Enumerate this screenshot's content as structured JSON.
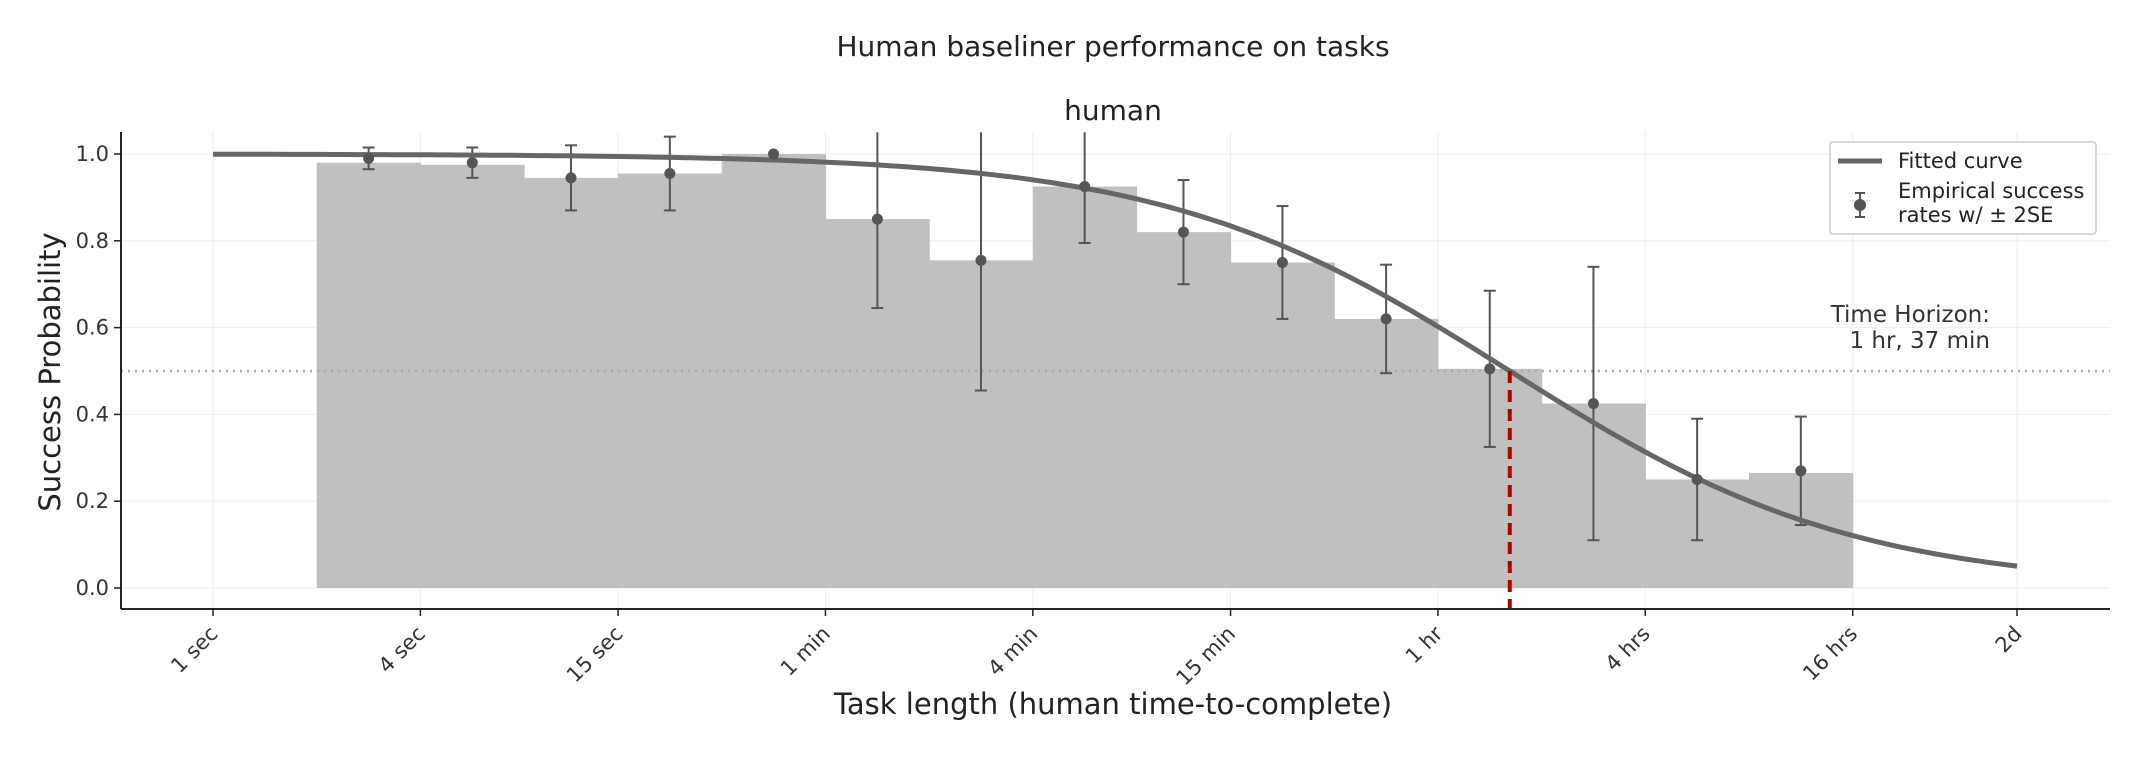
{
  "chart_data": {
    "type": "bar",
    "title": "Human baseliner performance on tasks",
    "subtitle": "human",
    "xlabel": "Task length (human time-to-complete)",
    "ylabel": "Success Probability",
    "x_scale": "log",
    "ylim": [
      -0.05,
      1.05
    ],
    "x_ticks": [
      {
        "label": "1 sec",
        "seconds": 1
      },
      {
        "label": "4 sec",
        "seconds": 4
      },
      {
        "label": "15 sec",
        "seconds": 15
      },
      {
        "label": "1 min",
        "seconds": 60
      },
      {
        "label": "4 min",
        "seconds": 240
      },
      {
        "label": "15 min",
        "seconds": 900
      },
      {
        "label": "1 hr",
        "seconds": 3600
      },
      {
        "label": "4 hrs",
        "seconds": 14400
      },
      {
        "label": "16 hrs",
        "seconds": 57600
      },
      {
        "label": "2d",
        "seconds": 172800
      }
    ],
    "y_ticks": [
      "0.0",
      "0.2",
      "0.4",
      "0.6",
      "0.8",
      "1.0"
    ],
    "bins": [
      {
        "x_start": 2,
        "x_end": 4,
        "value": 0.98
      },
      {
        "x_start": 4,
        "x_end": 8,
        "value": 0.975
      },
      {
        "x_start": 8,
        "x_end": 15,
        "value": 0.945
      },
      {
        "x_start": 15,
        "x_end": 30,
        "value": 0.955
      },
      {
        "x_start": 30,
        "x_end": 60,
        "value": 1.0
      },
      {
        "x_start": 60,
        "x_end": 120,
        "value": 0.85
      },
      {
        "x_start": 120,
        "x_end": 240,
        "value": 0.755
      },
      {
        "x_start": 240,
        "x_end": 480,
        "value": 0.925
      },
      {
        "x_start": 480,
        "x_end": 900,
        "value": 0.82
      },
      {
        "x_start": 900,
        "x_end": 1800,
        "value": 0.75
      },
      {
        "x_start": 1800,
        "x_end": 3600,
        "value": 0.62
      },
      {
        "x_start": 3600,
        "x_end": 7200,
        "value": 0.505
      },
      {
        "x_start": 7200,
        "x_end": 14400,
        "value": 0.425
      },
      {
        "x_start": 14400,
        "x_end": 28800,
        "value": 0.25
      },
      {
        "x_start": 28800,
        "x_end": 57600,
        "value": 0.265
      }
    ],
    "points": [
      {
        "x": 2.83,
        "y": 0.99,
        "lo": 0.965,
        "hi": 1.015
      },
      {
        "x": 5.66,
        "y": 0.98,
        "lo": 0.945,
        "hi": 1.015
      },
      {
        "x": 10.95,
        "y": 0.945,
        "lo": 0.87,
        "hi": 1.02
      },
      {
        "x": 21.2,
        "y": 0.955,
        "lo": 0.87,
        "hi": 1.04
      },
      {
        "x": 42.4,
        "y": 1.0
      },
      {
        "x": 84.9,
        "y": 0.85,
        "lo": 0.645,
        "hi": 1.06
      },
      {
        "x": 169.7,
        "y": 0.755,
        "lo": 0.455,
        "hi": 1.06
      },
      {
        "x": 339.4,
        "y": 0.925,
        "lo": 0.795,
        "hi": 1.06
      },
      {
        "x": 657,
        "y": 0.82,
        "lo": 0.7,
        "hi": 0.94
      },
      {
        "x": 1273,
        "y": 0.75,
        "lo": 0.62,
        "hi": 0.88
      },
      {
        "x": 2546,
        "y": 0.62,
        "lo": 0.495,
        "hi": 0.745
      },
      {
        "x": 5091,
        "y": 0.505,
        "lo": 0.325,
        "hi": 0.685
      },
      {
        "x": 10182,
        "y": 0.425,
        "lo": 0.11,
        "hi": 0.74
      },
      {
        "x": 20365,
        "y": 0.25,
        "lo": 0.11,
        "hi": 0.39
      },
      {
        "x": 40729,
        "y": 0.27,
        "lo": 0.145,
        "hi": 0.395
      }
    ],
    "fitted_curve": {
      "x_range": [
        1,
        172800
      ],
      "center": 5820,
      "slope": 0.6
    },
    "threshold": 0.5,
    "time_horizon": {
      "seconds": 5820,
      "label_line1": "Time Horizon:",
      "label_line2": "1 hr, 37 min"
    },
    "legend": {
      "position": "top-right",
      "items": [
        {
          "label": "Fitted curve"
        },
        {
          "label_line1": "Empirical success",
          "label_line2": "rates w/ ± 2SE"
        }
      ]
    },
    "colors": {
      "bar": "#c0c0c0",
      "curve": "#666666",
      "points": "#555555",
      "horizon_line": "#b20000",
      "threshold_line": "#aaaaaa",
      "grid": "#eeeeee"
    },
    "grid": true
  }
}
